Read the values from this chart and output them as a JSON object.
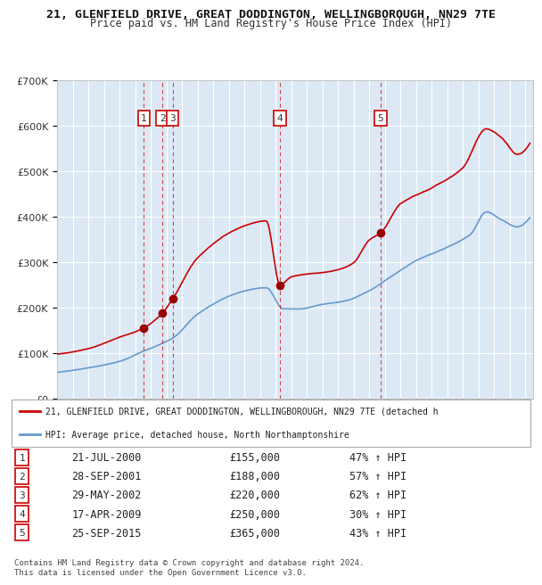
{
  "title_line1": "21, GLENFIELD DRIVE, GREAT DODDINGTON, WELLINGBOROUGH, NN29 7TE",
  "title_line2": "Price paid vs. HM Land Registry's House Price Index (HPI)",
  "bg_color": "#dce9f5",
  "plot_bg_color": "#dce9f5",
  "red_line_color": "#cc0000",
  "blue_line_color": "#6699cc",
  "grid_color": "#ffffff",
  "purchases": [
    {
      "num": 1,
      "date": "2000-07-21",
      "price": 155000,
      "x_val": 2000.554
    },
    {
      "num": 2,
      "date": "2001-09-28",
      "price": 188000,
      "x_val": 2001.74
    },
    {
      "num": 3,
      "date": "2002-05-29",
      "price": 220000,
      "x_val": 2002.41
    },
    {
      "num": 4,
      "date": "2009-04-17",
      "price": 250000,
      "x_val": 2009.29
    },
    {
      "num": 5,
      "date": "2015-09-25",
      "price": 365000,
      "x_val": 2015.73
    }
  ],
  "legend_line1": "21, GLENFIELD DRIVE, GREAT DODDINGTON, WELLINGBOROUGH, NN29 7TE (detached h",
  "legend_line2": "HPI: Average price, detached house, North Northamptonshire",
  "table_rows": [
    {
      "num": 1,
      "date": "21-JUL-2000",
      "price": "£155,000",
      "pct": "47% ↑ HPI"
    },
    {
      "num": 2,
      "date": "28-SEP-2001",
      "price": "£188,000",
      "pct": "57% ↑ HPI"
    },
    {
      "num": 3,
      "date": "29-MAY-2002",
      "price": "£220,000",
      "pct": "62% ↑ HPI"
    },
    {
      "num": 4,
      "date": "17-APR-2009",
      "price": "£250,000",
      "pct": "30% ↑ HPI"
    },
    {
      "num": 5,
      "date": "25-SEP-2015",
      "price": "£365,000",
      "pct": "43% ↑ HPI"
    }
  ],
  "footnote": "Contains HM Land Registry data © Crown copyright and database right 2024.\nThis data is licensed under the Open Government Licence v3.0.",
  "ylim": [
    0,
    700000
  ],
  "yticks": [
    0,
    100000,
    200000,
    300000,
    400000,
    500000,
    600000,
    700000
  ],
  "xlim_start": 1995.0,
  "xlim_end": 2025.5
}
